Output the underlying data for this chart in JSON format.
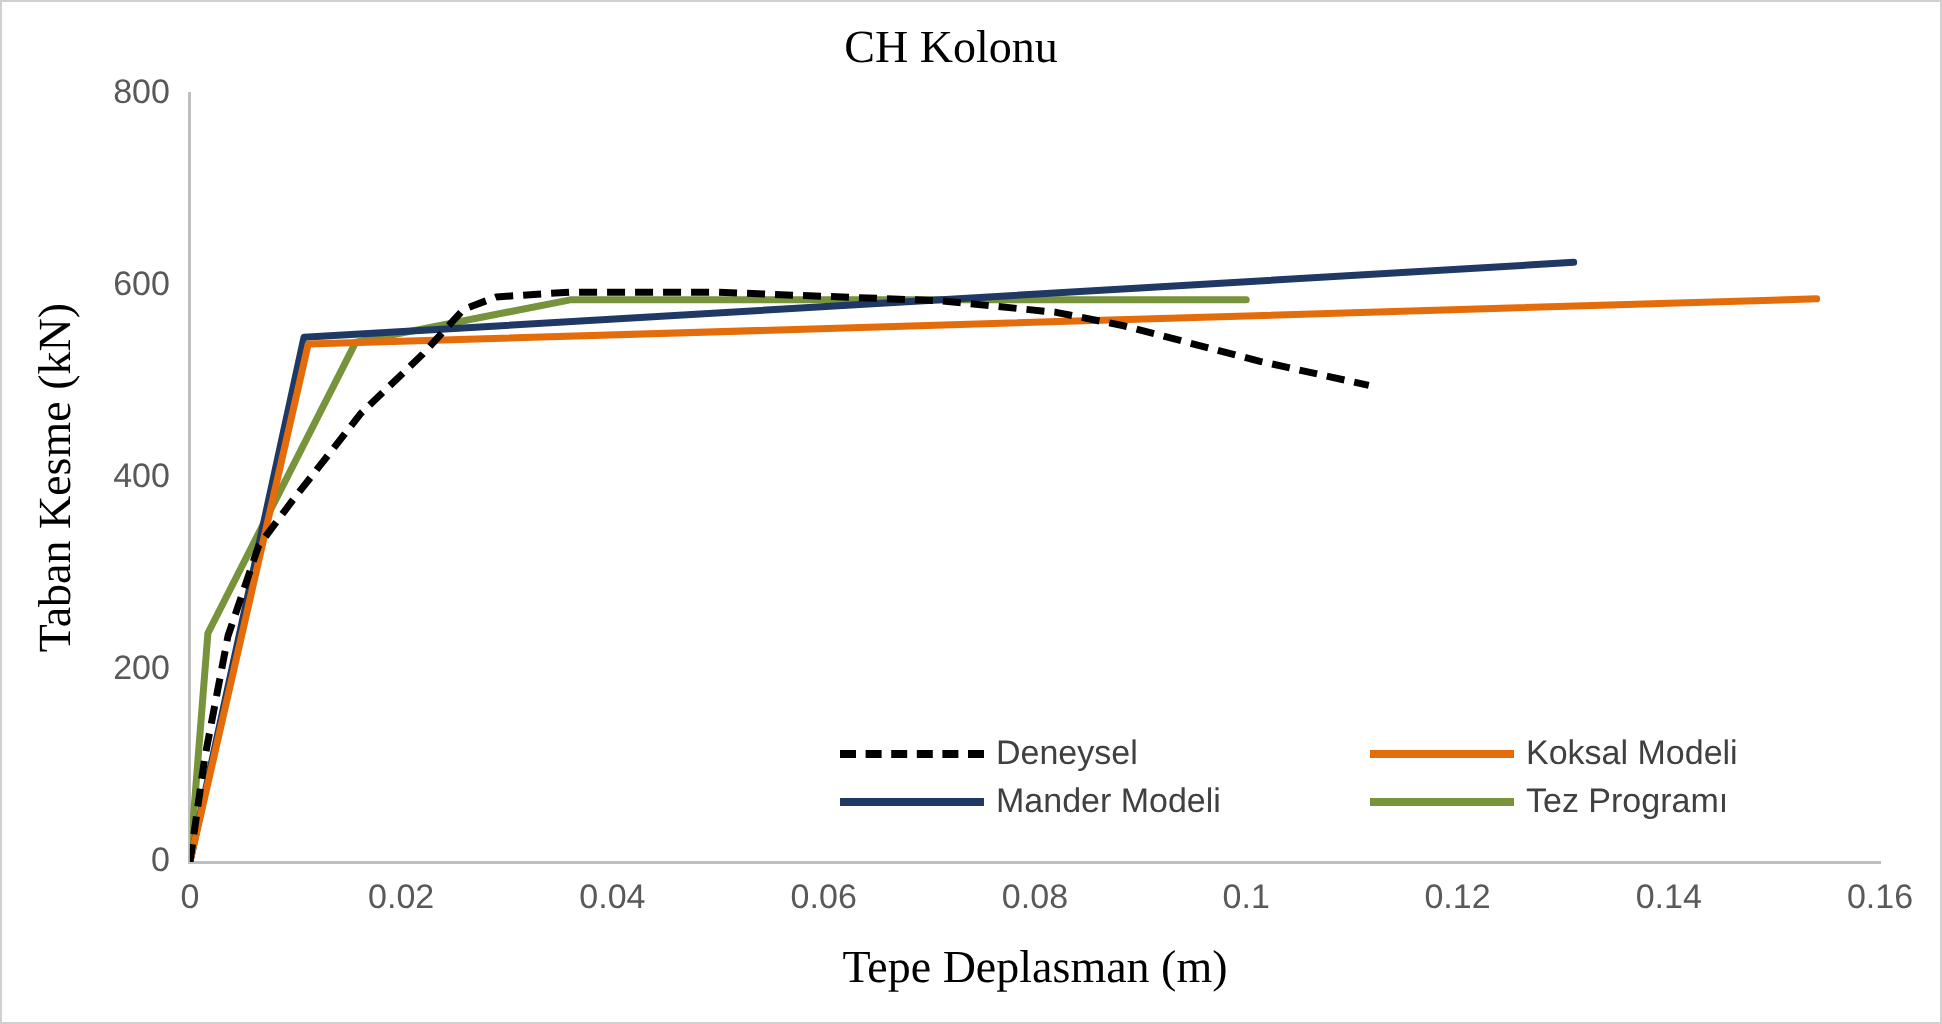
{
  "chart_data": {
    "type": "line",
    "title": "CH Kolonu",
    "xlabel": "Tepe Deplasman (m)",
    "ylabel": "Taban Kesme (kN)",
    "xlim": [
      0,
      0.16
    ],
    "xticks": [
      0,
      0.02,
      0.04,
      0.06,
      0.08,
      0.1,
      0.12,
      0.14,
      0.16
    ],
    "ylim": [
      0,
      800
    ],
    "yticks": [
      0,
      200,
      400,
      600,
      800
    ],
    "grid": false,
    "legend": "bottom right",
    "marker": "none",
    "series": [
      {
        "name": "Deneysel",
        "color": "#000000",
        "line_style": "dashed",
        "x": [
          0,
          0.0014,
          0.0036,
          0.0065,
          0.0097,
          0.0162,
          0.022,
          0.0259,
          0.029,
          0.036,
          0.0497,
          0.071,
          0.082,
          0.0884,
          0.1013,
          0.1116
        ],
        "values": [
          0,
          108,
          235,
          329,
          376,
          467,
          528,
          575,
          588,
          593,
          593,
          584,
          572,
          558,
          521,
          496
        ]
      },
      {
        "name": "Koksal Modeli",
        "color": "#e46c0a",
        "line_style": "solid",
        "x": [
          0,
          0.0112,
          0.154
        ],
        "values": [
          0,
          539,
          586
        ]
      },
      {
        "name": "Mander Modeli",
        "color": "#1f3864",
        "line_style": "solid",
        "x": [
          0,
          0.0108,
          0.131
        ],
        "values": [
          0,
          546,
          624
        ]
      },
      {
        "name": "Tez Programı",
        "color": "#77933c",
        "line_style": "solid",
        "x": [
          0,
          0.0017,
          0.0157,
          0.036,
          0.1
        ],
        "values": [
          0,
          238,
          541,
          585,
          585
        ]
      }
    ]
  }
}
